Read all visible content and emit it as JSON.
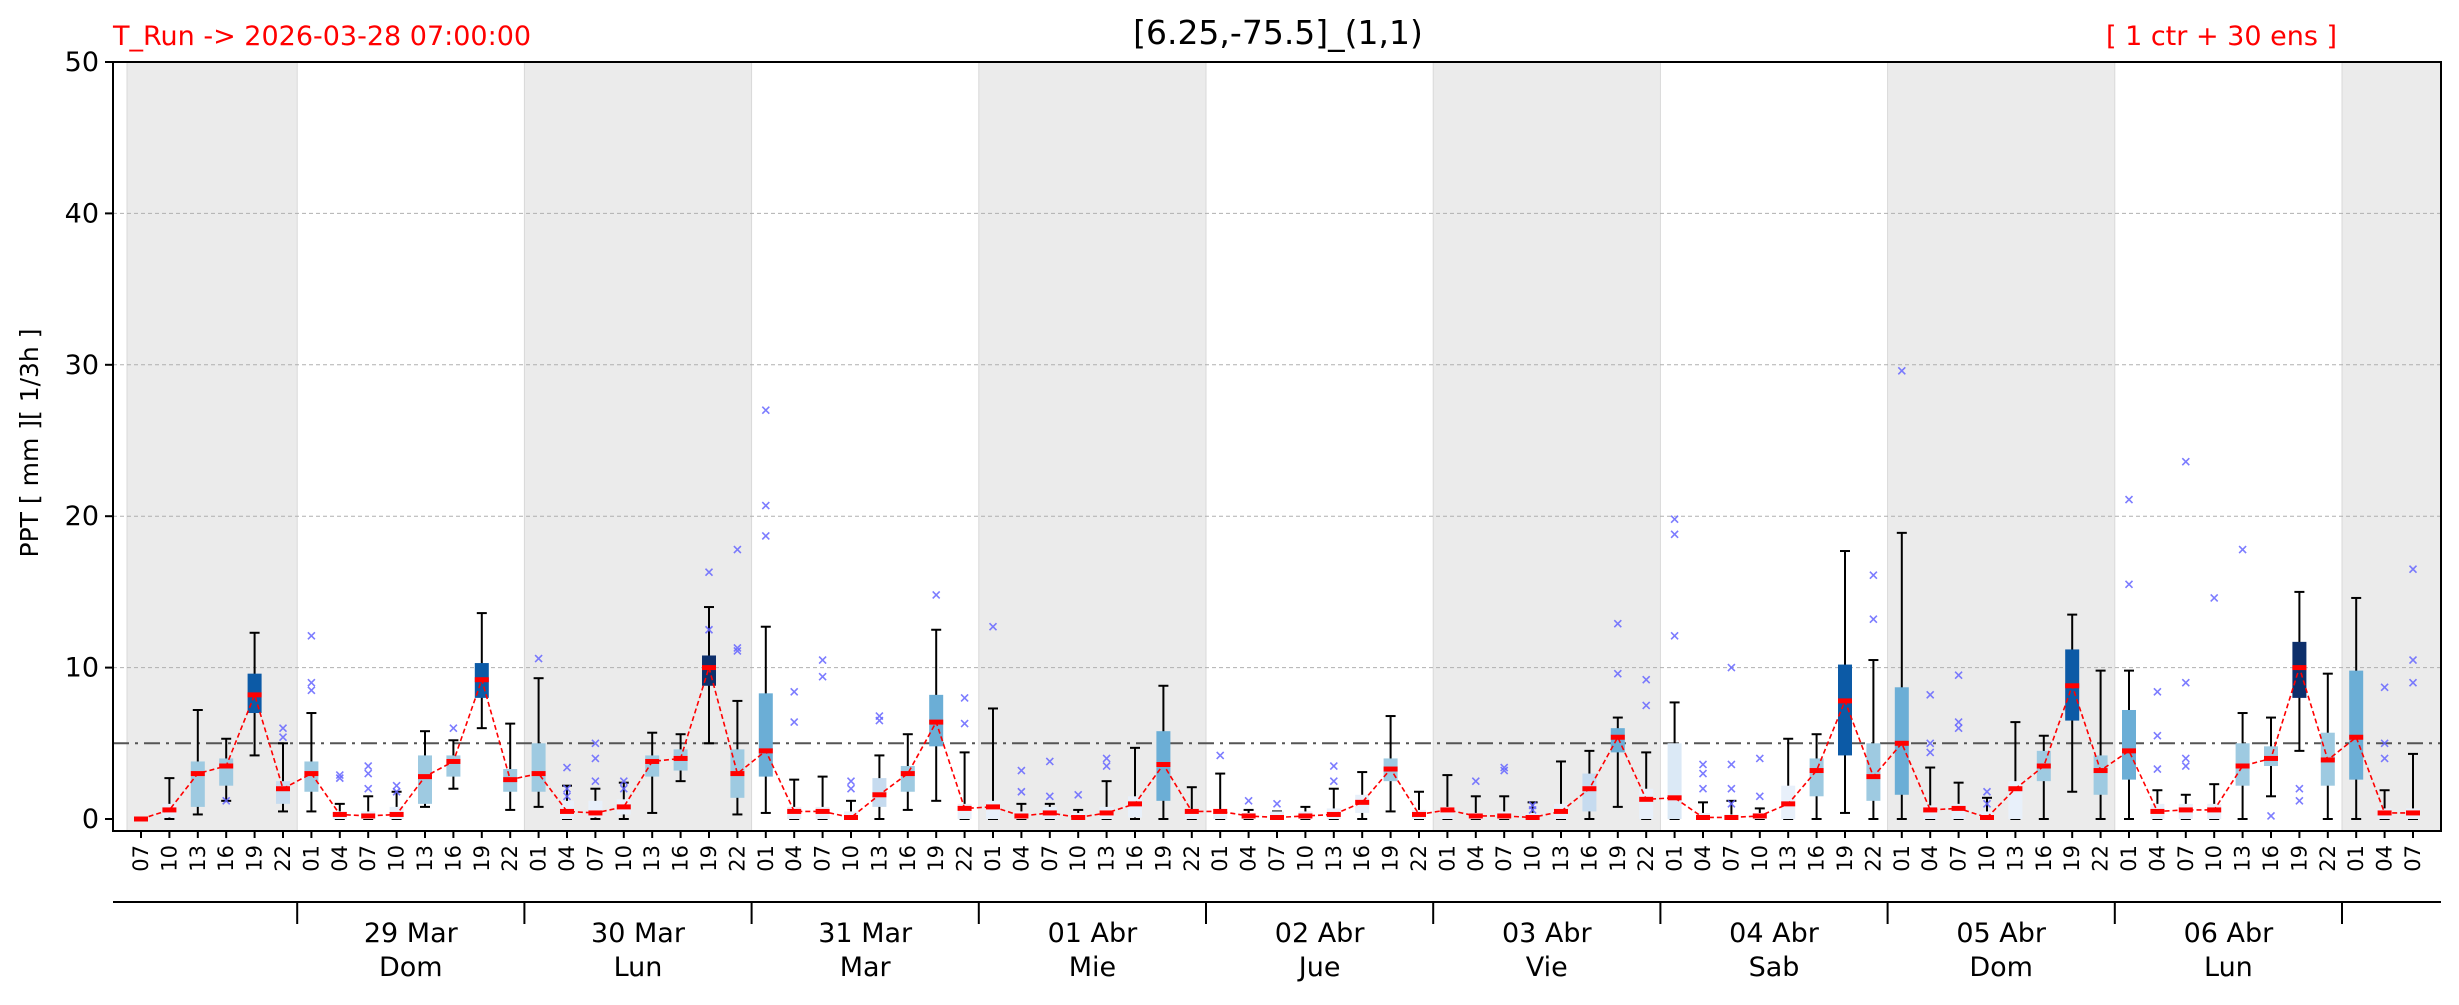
{
  "header": {
    "run_label": "T_Run -> 2026-03-28  07:00:00",
    "title": "[6.25,-75.5]_(1,1)",
    "members_label": "[ 1 ctr + 30 ens ]"
  },
  "chart_data": {
    "type": "box",
    "title": "[6.25,-75.5]_(1,1)",
    "ylabel": "PPT  [ mm ][ 1/3h ]",
    "ylim": [
      0,
      50
    ],
    "yticks": [
      0,
      10,
      20,
      30,
      40,
      50
    ],
    "threshold": 5,
    "grid": true,
    "hours": [
      "07",
      "10",
      "13",
      "16",
      "19",
      "22",
      "01",
      "04",
      "07",
      "10",
      "13",
      "16",
      "19",
      "22",
      "01",
      "04",
      "07",
      "10",
      "13",
      "16",
      "19",
      "22",
      "01",
      "04",
      "07",
      "10",
      "13",
      "16",
      "19",
      "22",
      "01",
      "04",
      "07",
      "10",
      "13",
      "16",
      "19",
      "22",
      "01",
      "04",
      "07",
      "10",
      "13",
      "16",
      "19",
      "22",
      "01",
      "04",
      "07",
      "10",
      "13",
      "16",
      "19",
      "22",
      "01",
      "04",
      "07",
      "10",
      "13",
      "16",
      "19",
      "22",
      "01",
      "04",
      "07",
      "10",
      "13",
      "16",
      "19",
      "22",
      "01",
      "04",
      "07",
      "10",
      "13",
      "16",
      "19",
      "22",
      "01",
      "04",
      "07"
    ],
    "days": [
      {
        "date": "29 Mar",
        "weekday": "Dom"
      },
      {
        "date": "30 Mar",
        "weekday": "Lun"
      },
      {
        "date": "31 Mar",
        "weekday": "Mar"
      },
      {
        "date": "01 Abr",
        "weekday": "Mie"
      },
      {
        "date": "02 Abr",
        "weekday": "Jue"
      },
      {
        "date": "03 Abr",
        "weekday": "Vie"
      },
      {
        "date": "04 Abr",
        "weekday": "Sab"
      },
      {
        "date": "05 Abr",
        "weekday": "Dom"
      },
      {
        "date": "06 Abr",
        "weekday": "Lun"
      }
    ],
    "median": [
      0.0,
      0.6,
      3.0,
      3.5,
      8.2,
      2.0,
      3.0,
      0.3,
      0.2,
      0.3,
      2.8,
      3.8,
      9.2,
      2.6,
      3.0,
      0.5,
      0.4,
      0.8,
      3.8,
      4.0,
      10.0,
      3.0,
      4.5,
      0.5,
      0.5,
      0.1,
      1.6,
      3.0,
      6.4,
      0.7,
      0.8,
      0.2,
      0.4,
      0.1,
      0.4,
      1.0,
      3.6,
      0.5,
      0.5,
      0.2,
      0.1,
      0.2,
      0.3,
      1.1,
      3.3,
      0.3,
      0.6,
      0.2,
      0.2,
      0.1,
      0.5,
      2.0,
      5.4,
      1.3,
      1.4,
      0.1,
      0.1,
      0.2,
      1.0,
      3.2,
      7.8,
      2.8,
      5.0,
      0.6,
      0.7,
      0.1,
      2.0,
      3.5,
      8.8,
      3.2,
      4.5,
      0.5,
      0.6,
      0.6,
      3.5,
      4.0,
      10.0,
      3.9,
      5.4,
      0.4,
      0.4
    ],
    "q1": [
      0.0,
      0.1,
      0.8,
      2.2,
      7.0,
      1.0,
      1.8,
      0.0,
      0.0,
      0.0,
      1.0,
      2.8,
      8.0,
      1.8,
      1.8,
      0.0,
      0.1,
      0.3,
      2.8,
      3.2,
      8.8,
      1.4,
      2.8,
      0.0,
      0.0,
      0.0,
      0.8,
      1.8,
      4.8,
      0.0,
      0.0,
      0.0,
      0.0,
      0.0,
      0.0,
      0.1,
      1.2,
      0.0,
      0.0,
      0.0,
      0.0,
      0.0,
      0.0,
      0.4,
      2.5,
      0.0,
      0.0,
      0.0,
      0.0,
      0.0,
      0.0,
      0.5,
      4.4,
      0.0,
      0.0,
      0.0,
      0.0,
      0.0,
      0.0,
      1.5,
      4.2,
      1.2,
      1.6,
      0.0,
      0.0,
      0.0,
      0.0,
      2.5,
      6.5,
      1.6,
      2.6,
      0.0,
      0.0,
      0.0,
      2.2,
      3.5,
      8.0,
      2.2,
      2.6,
      0.0,
      0.0
    ],
    "q3": [
      0.0,
      1.0,
      3.8,
      4.0,
      9.6,
      2.5,
      3.8,
      0.5,
      0.5,
      0.8,
      4.2,
      4.2,
      10.3,
      3.3,
      5.0,
      1.2,
      1.2,
      1.3,
      4.2,
      4.6,
      10.8,
      4.6,
      8.3,
      0.8,
      0.8,
      0.5,
      2.7,
      3.5,
      8.2,
      1.0,
      1.2,
      0.5,
      0.8,
      0.4,
      0.8,
      1.5,
      5.8,
      0.6,
      0.6,
      0.4,
      0.5,
      0.5,
      0.7,
      1.6,
      4.0,
      0.6,
      0.8,
      0.4,
      0.5,
      0.4,
      1.0,
      3.0,
      6.0,
      2.0,
      5.0,
      0.4,
      0.3,
      0.4,
      2.2,
      4.0,
      10.2,
      5.0,
      8.7,
      0.9,
      1.0,
      0.5,
      2.5,
      4.5,
      11.2,
      4.2,
      7.2,
      1.0,
      1.0,
      1.0,
      5.0,
      4.8,
      11.7,
      5.7,
      9.8,
      0.7,
      0.7
    ],
    "whisker_low": [
      0.0,
      0.0,
      0.3,
      1.2,
      4.2,
      0.5,
      0.5,
      0.0,
      0.0,
      0.0,
      0.8,
      2.0,
      6.0,
      0.6,
      0.8,
      0.0,
      0.0,
      0.0,
      0.4,
      2.5,
      5.0,
      0.3,
      0.4,
      0.0,
      0.0,
      0.0,
      0.0,
      0.6,
      1.2,
      0.0,
      0.0,
      0.0,
      0.0,
      0.0,
      0.0,
      0.0,
      0.0,
      0.0,
      0.0,
      0.0,
      0.0,
      0.0,
      0.0,
      0.0,
      0.5,
      0.0,
      0.0,
      0.0,
      0.0,
      0.0,
      0.0,
      0.0,
      0.8,
      0.0,
      0.0,
      0.0,
      0.0,
      0.0,
      0.0,
      0.0,
      0.4,
      0.0,
      0.0,
      0.0,
      0.0,
      0.0,
      0.0,
      0.0,
      1.8,
      0.0,
      0.0,
      0.0,
      0.0,
      0.0,
      0.0,
      1.5,
      4.5,
      0.0,
      0.0,
      0.0,
      0.0
    ],
    "whisker_high": [
      0.0,
      2.7,
      7.2,
      5.3,
      12.3,
      5.0,
      7.0,
      1.0,
      1.5,
      1.8,
      5.8,
      5.2,
      13.6,
      6.3,
      9.3,
      2.2,
      2.0,
      2.4,
      5.7,
      5.6,
      14.0,
      7.8,
      12.7,
      2.6,
      2.8,
      1.2,
      4.2,
      5.6,
      12.5,
      4.4,
      7.3,
      1.0,
      1.0,
      0.6,
      2.5,
      4.7,
      8.8,
      2.1,
      3.0,
      0.6,
      0.5,
      0.8,
      2.0,
      3.1,
      6.8,
      1.8,
      2.9,
      1.5,
      1.5,
      1.1,
      3.8,
      4.5,
      6.7,
      4.4,
      7.7,
      1.1,
      1.2,
      0.7,
      5.3,
      5.6,
      17.7,
      10.5,
      18.9,
      3.4,
      2.4,
      1.4,
      6.4,
      5.5,
      13.5,
      9.8,
      9.8,
      1.9,
      1.6,
      2.3,
      7.0,
      6.7,
      15.0,
      9.6,
      14.6,
      1.9,
      4.3
    ],
    "fill_colors": [
      "#e8f0fa",
      "#e8f0fa",
      "#9ecae1",
      "#9ecae1",
      "#0c5aa6",
      "#c6dbef",
      "#9ecae1",
      "#e8f0fa",
      "#e8f0fa",
      "#e8f0fa",
      "#9ecae1",
      "#9ecae1",
      "#0c5aa6",
      "#9ecae1",
      "#9ecae1",
      "#e8f0fa",
      "#e8f0fa",
      "#e8f0fa",
      "#9ecae1",
      "#9ecae1",
      "#0d2f6b",
      "#9ecae1",
      "#6baed6",
      "#e8f0fa",
      "#e8f0fa",
      "#e8f0fa",
      "#c6dbef",
      "#9ecae1",
      "#6baed6",
      "#e8f0fa",
      "#e8f0fa",
      "#e8f0fa",
      "#e8f0fa",
      "#e8f0fa",
      "#e8f0fa",
      "#e8f0fa",
      "#6baed6",
      "#e8f0fa",
      "#e8f0fa",
      "#e8f0fa",
      "#e8f0fa",
      "#e8f0fa",
      "#e8f0fa",
      "#e8f0fa",
      "#9ecae1",
      "#e8f0fa",
      "#e8f0fa",
      "#e8f0fa",
      "#e8f0fa",
      "#e8f0fa",
      "#e8f0fa",
      "#c6dbef",
      "#6baed6",
      "#e8f0fa",
      "#dbe9f6",
      "#e8f0fa",
      "#e8f0fa",
      "#e8f0fa",
      "#e8f0fa",
      "#9ecae1",
      "#0c5aa6",
      "#9ecae1",
      "#6baed6",
      "#e8f0fa",
      "#e8f0fa",
      "#e8f0fa",
      "#e8f0fa",
      "#9ecae1",
      "#0c5aa6",
      "#9ecae1",
      "#6baed6",
      "#e8f0fa",
      "#e8f0fa",
      "#e8f0fa",
      "#9ecae1",
      "#9ecae1",
      "#0d2f6b",
      "#9ecae1",
      "#6baed6",
      "#e8f0fa",
      "#e8f0fa"
    ],
    "outliers": [
      [],
      [],
      [],
      [
        1.2
      ],
      [],
      [
        5.4,
        6.0
      ],
      [
        8.5,
        9.0,
        12.1
      ],
      [
        2.7,
        2.9
      ],
      [
        3.0,
        3.5,
        2.0
      ],
      [
        1.8,
        2.2
      ],
      [],
      [
        6.0
      ],
      [],
      [],
      [
        10.6
      ],
      [
        1.5,
        2.0,
        3.4
      ],
      [
        2.5,
        4.0,
        5.0
      ],
      [
        2.0,
        2.5
      ],
      [],
      [],
      [
        12.5,
        16.3
      ],
      [
        11.1,
        11.3,
        17.8
      ],
      [
        18.7,
        20.7,
        27.0
      ],
      [
        6.4,
        8.4
      ],
      [
        9.4,
        10.5
      ],
      [
        2.0,
        2.5
      ],
      [
        6.5,
        6.8
      ],
      [],
      [
        14.8
      ],
      [
        6.3,
        8.0
      ],
      [
        12.7
      ],
      [
        1.8,
        3.2
      ],
      [
        1.5,
        3.8
      ],
      [
        1.6
      ],
      [
        3.5,
        4.0
      ],
      [],
      [],
      [],
      [
        4.2
      ],
      [
        1.2
      ],
      [
        1.0
      ],
      [],
      [
        2.5,
        3.5
      ],
      [],
      [],
      [],
      [],
      [
        2.5
      ],
      [
        3.2,
        3.4
      ],
      [
        0.6,
        0.9
      ],
      [],
      [],
      [
        9.6,
        12.9
      ],
      [
        7.5,
        9.2
      ],
      [
        12.1,
        18.8,
        19.8
      ],
      [
        2.0,
        3.0,
        3.6
      ],
      [
        1.0,
        2.0,
        3.6,
        10.0
      ],
      [
        1.5,
        4.0
      ],
      [],
      [],
      [],
      [
        13.2,
        16.1
      ],
      [
        29.6
      ],
      [
        4.4,
        5.0,
        8.2
      ],
      [
        6.0,
        6.4,
        9.5
      ],
      [
        1.0,
        1.8
      ],
      [],
      [],
      [],
      [],
      [
        15.5,
        21.1
      ],
      [
        3.3,
        5.5,
        8.4
      ],
      [
        3.5,
        4.0,
        9.0,
        23.6
      ],
      [
        14.6
      ],
      [
        17.8
      ],
      [
        0.2
      ],
      [
        1.2,
        2.0
      ],
      [],
      [],
      [
        4.0,
        5.0,
        8.7
      ],
      [
        9.0,
        10.5,
        16.5
      ]
    ]
  }
}
